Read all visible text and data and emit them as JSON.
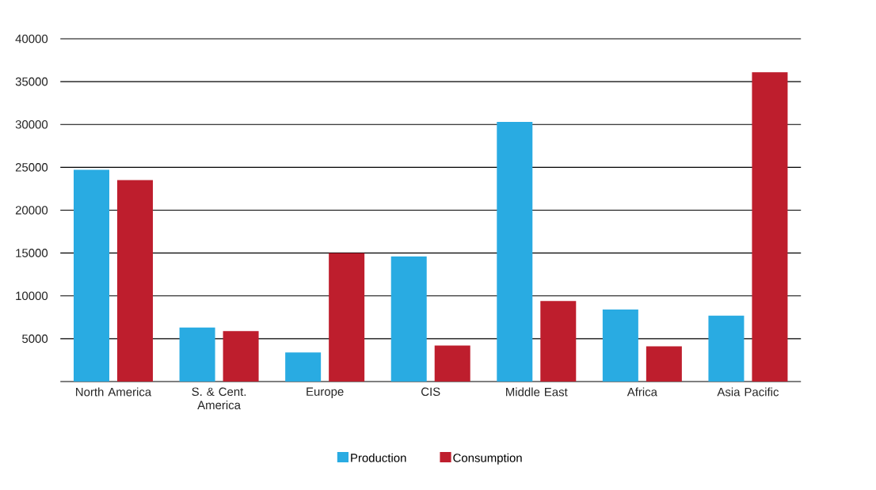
{
  "chart_data": {
    "type": "bar",
    "categories": [
      "North America",
      "S. & Cent. America",
      "Europe",
      "CIS",
      "Middle East",
      "Africa",
      "Asia Pacific"
    ],
    "series": [
      {
        "name": "Production",
        "color": "#29abe2",
        "values": [
          24700,
          6300,
          3400,
          14600,
          30300,
          8400,
          7700
        ]
      },
      {
        "name": "Consumption",
        "color": "#be1e2d",
        "values": [
          23500,
          5900,
          15000,
          4200,
          9400,
          4100,
          36100
        ]
      }
    ],
    "ylim": [
      0,
      40000
    ],
    "yticks": [
      5000,
      10000,
      15000,
      20000,
      25000,
      30000,
      35000,
      40000
    ],
    "grid": "y",
    "legend": "bottom"
  }
}
